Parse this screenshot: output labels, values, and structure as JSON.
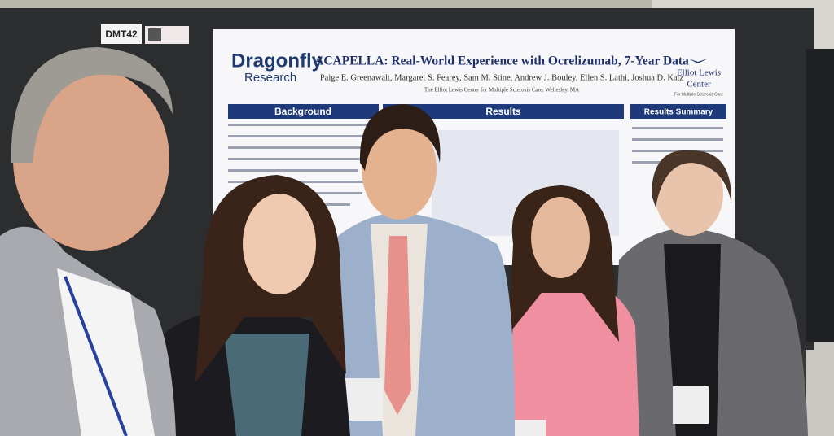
{
  "booth": {
    "label": "DMT42"
  },
  "poster": {
    "logo": {
      "name": "Dragonfly",
      "sub": "Research"
    },
    "title": "ACAPELLA: Real-World Experience with Ocrelizumab, 7-Year Data",
    "authors": "Paige E. Greenawalt, Margaret S. Fearey, Sam M. Stine, Andrew J. Bouley, Ellen S. Lathi, Joshua D. Katz",
    "affiliation": "The Elliot Lewis Center for Multiple Sclerosis Care, Wellesley, MA",
    "sections": [
      "Background",
      "Results",
      "Results Summary"
    ],
    "right_logo": {
      "name": "Elliot Lewis",
      "sub": "Center",
      "tagline": "For Multiple Sclerosis Care"
    }
  }
}
